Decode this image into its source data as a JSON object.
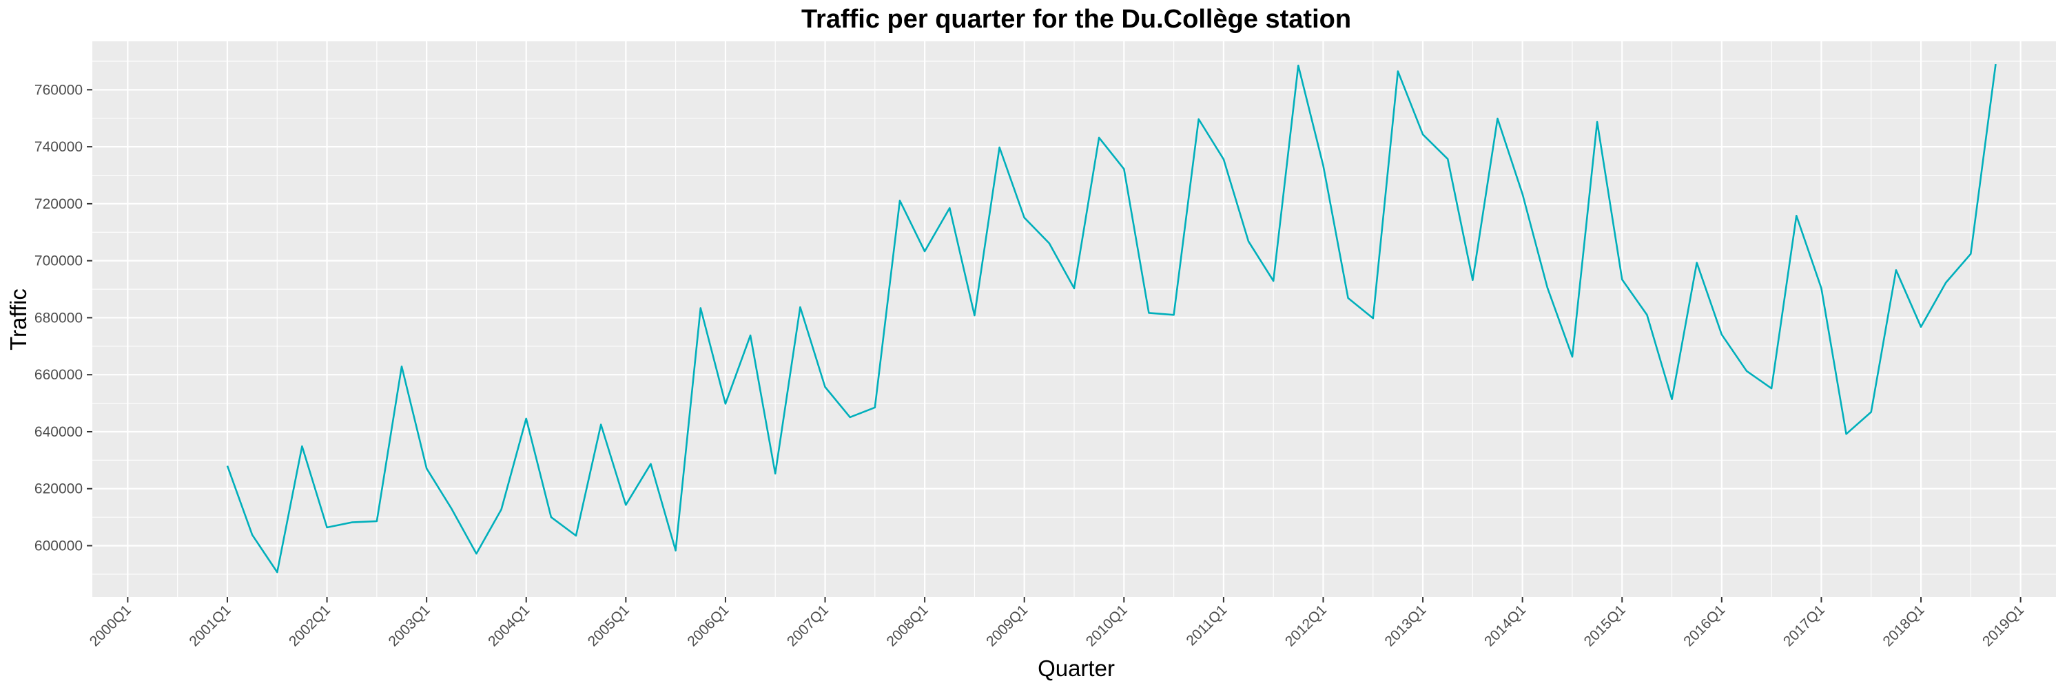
{
  "chart_data": {
    "type": "line",
    "title": "Traffic per quarter for the Du.Collège station",
    "xlabel": "Quarter",
    "ylabel": "Traffic",
    "series_color": "#00AFBB",
    "panel_background": "#EBEBEB",
    "grid_color": "#FFFFFF",
    "grid": true,
    "x_tick_labels": [
      "2000Q1",
      "2001Q1",
      "2002Q1",
      "2003Q1",
      "2004Q1",
      "2005Q1",
      "2006Q1",
      "2007Q1",
      "2008Q1",
      "2009Q1",
      "2010Q1",
      "2011Q1",
      "2012Q1",
      "2013Q1",
      "2014Q1",
      "2015Q1",
      "2016Q1",
      "2017Q1",
      "2018Q1",
      "2019Q1"
    ],
    "y_ticks": [
      600000,
      620000,
      640000,
      660000,
      680000,
      700000,
      720000,
      740000,
      760000
    ],
    "y_tick_labels": [
      "600000",
      "620000",
      "640000",
      "660000",
      "680000",
      "700000",
      "720000",
      "740000",
      "760000"
    ],
    "ylim": [
      582000,
      777000
    ],
    "xlim": [
      "2000Q1",
      "2019Q1"
    ],
    "quarters": [
      "2001Q1",
      "2001Q2",
      "2001Q3",
      "2001Q4",
      "2002Q1",
      "2002Q2",
      "2002Q3",
      "2002Q4",
      "2003Q1",
      "2003Q2",
      "2003Q3",
      "2003Q4",
      "2004Q1",
      "2004Q2",
      "2004Q3",
      "2004Q4",
      "2005Q1",
      "2005Q2",
      "2005Q3",
      "2005Q4",
      "2006Q1",
      "2006Q2",
      "2006Q3",
      "2006Q4",
      "2007Q1",
      "2007Q2",
      "2007Q3",
      "2007Q4",
      "2008Q1",
      "2008Q2",
      "2008Q3",
      "2008Q4",
      "2009Q1",
      "2009Q2",
      "2009Q3",
      "2009Q4",
      "2010Q1",
      "2010Q2",
      "2010Q3",
      "2010Q4",
      "2011Q1",
      "2011Q2",
      "2011Q3",
      "2011Q4",
      "2012Q1",
      "2012Q2",
      "2012Q3",
      "2012Q4",
      "2013Q1",
      "2013Q2",
      "2013Q3",
      "2013Q4",
      "2014Q1",
      "2014Q2",
      "2014Q3",
      "2014Q4",
      "2015Q1",
      "2015Q2",
      "2015Q3",
      "2015Q4",
      "2016Q1",
      "2016Q2",
      "2016Q3",
      "2016Q4",
      "2017Q1",
      "2017Q2",
      "2017Q3",
      "2017Q4",
      "2018Q1",
      "2018Q2",
      "2018Q3",
      "2018Q4"
    ],
    "values": [
      628000,
      603800,
      590700,
      634900,
      606400,
      608200,
      608600,
      662900,
      627100,
      613000,
      597200,
      612700,
      644600,
      610000,
      603500,
      642500,
      614300,
      628700,
      598300,
      683400,
      649800,
      673800,
      625300,
      683700,
      655700,
      645100,
      648500,
      721100,
      703300,
      718500,
      680800,
      739800,
      715100,
      706100,
      690300,
      743200,
      732200,
      681700,
      681000,
      749700,
      735600,
      706800,
      692900,
      768500,
      733400,
      686900,
      679800,
      766500,
      744300,
      735700,
      693200,
      749900,
      723400,
      690600,
      666300,
      748700,
      693400,
      681000,
      651400,
      699300,
      674100,
      661300,
      655200,
      715800,
      690400,
      639200,
      646900,
      696700,
      676800,
      692300,
      702400,
      769000
    ]
  }
}
